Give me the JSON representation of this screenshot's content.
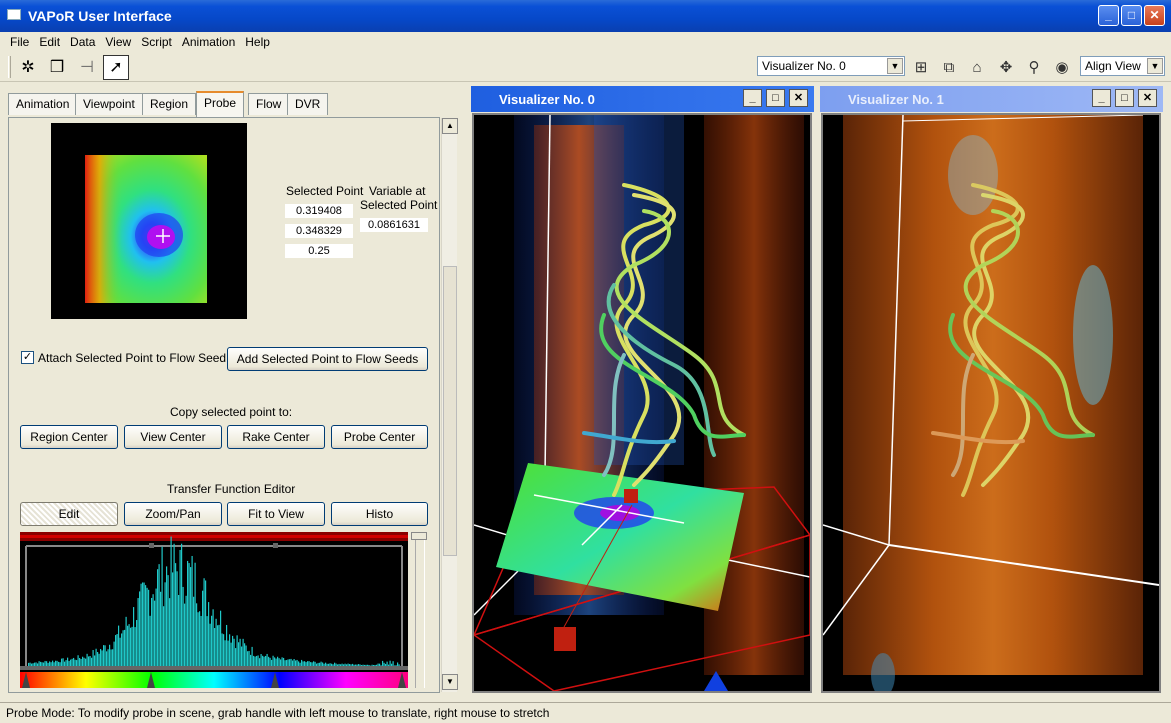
{
  "window": {
    "title": "VAPoR User Interface",
    "minimize": "_",
    "maximize": "□",
    "close": "✕"
  },
  "menu": [
    "File",
    "Edit",
    "Data",
    "View",
    "Script",
    "Animation",
    "Help"
  ],
  "toolbar": {
    "visualizer_select": "Visualizer No. 0",
    "align_view": "Align View",
    "icons": [
      "navigate-icon",
      "region-icon",
      "probe-icon",
      "arrow-icon"
    ],
    "right_icons": [
      "tile-icon",
      "cascade-icon",
      "home-icon",
      "center-icon",
      "zoom-icon",
      "eye-icon"
    ]
  },
  "tabs": [
    "Animation",
    "Viewpoint",
    "Region",
    "Probe",
    "Flow",
    "DVR"
  ],
  "active_tab": "Probe",
  "probe": {
    "selected_point_label": "Selected Point",
    "variable_label_1": "Variable at",
    "variable_label_2": "Selected Point",
    "coords": [
      "0.319408",
      "0.348329",
      "0.25"
    ],
    "variable_value": "0.0861631",
    "attach_label": "Attach Selected Point to Flow Seed",
    "attach_checked": true,
    "add_seeds_button": "Add Selected Point to Flow Seeds",
    "copy_label": "Copy selected point to:",
    "copy_buttons": [
      "Region Center",
      "View Center",
      "Rake Center",
      "Probe Center"
    ],
    "tf_label": "Transfer Function Editor",
    "tf_buttons": [
      "Edit",
      "Zoom/Pan",
      "Fit to View",
      "Histo"
    ],
    "tf_active": "Edit"
  },
  "visualizers": [
    {
      "title": "Visualizer No. 0",
      "active": true
    },
    {
      "title": "Visualizer No. 1",
      "active": false
    }
  ],
  "status": "Probe Mode:  To modify probe in scene, grab handle with left mouse to translate, right mouse to stretch",
  "colors": {
    "title_blue": "#0a50d6",
    "active_viz": "#2a6be0",
    "inactive_viz": "#7d9ff0",
    "tab_highlight": "#e68b2c"
  }
}
